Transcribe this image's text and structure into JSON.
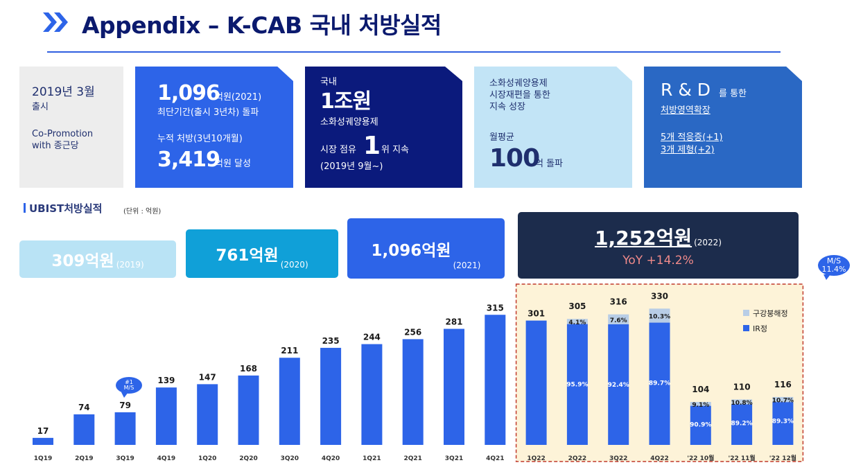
{
  "header": {
    "title": "Appendix – K-CAB 국내 처방실적"
  },
  "boxes": {
    "launch": {
      "line1": "2019년 3월",
      "line2": "출시",
      "line3": "Co-Promotion",
      "line4": "with 종근당"
    },
    "fastest": {
      "value1": "1,096",
      "unit1": "억원(2021)",
      "desc1": "최단기간(출시 3년차) 돌파",
      "desc2": "누적 처방(3년10개월)",
      "value2": "3,419",
      "unit2": "억원 달성"
    },
    "share": {
      "label1": "국내",
      "value": "1조원",
      "label2": "소화성궤양용제",
      "prefix": "시장 점유",
      "rank": "1",
      "suffix": "위 지속",
      "since": "(2019년 9월~)"
    },
    "growth": {
      "line1": "소화성궤양용제",
      "line2": "시장재편을 통한",
      "line3": "지속 성장",
      "label": "월평균",
      "value": "100",
      "unit": "억 돌파"
    },
    "rnd": {
      "title": "R & D",
      "title_suffix": "를 통한",
      "subtitle": "처방영역확장",
      "item1": "5개 적응증(+1)",
      "item2": "3개 제형(+2)"
    }
  },
  "section": {
    "label": "UBIST처방실적",
    "unit": "(단위 : 억원)"
  },
  "yearly": [
    {
      "value": "309억원",
      "year": "(2019)"
    },
    {
      "value": "761억원",
      "year": "(2020)"
    },
    {
      "value": "1,096억원",
      "year": "(2021)"
    },
    {
      "value": "1,252억원",
      "year": "(2022)",
      "yoy": "YoY +14.2%"
    }
  ],
  "bubbles": {
    "first_line1": "#1",
    "first_line2": "M/S",
    "ms_line1": "M/S",
    "ms_line2": "11.4%"
  },
  "chart_data": {
    "type": "bar",
    "categories": [
      "1Q19",
      "2Q19",
      "3Q19",
      "4Q19",
      "1Q20",
      "2Q20",
      "3Q20",
      "4Q20",
      "1Q21",
      "2Q21",
      "3Q21",
      "4Q21",
      "1Q22",
      "2Q22",
      "3Q22",
      "4Q22",
      "'22 10월",
      "'22 11월",
      "'22 12월"
    ],
    "values": [
      17,
      74,
      79,
      139,
      147,
      168,
      211,
      235,
      244,
      256,
      281,
      315,
      301,
      305,
      316,
      330,
      104,
      110,
      116
    ],
    "split": [
      null,
      null,
      null,
      null,
      null,
      null,
      null,
      null,
      null,
      null,
      null,
      null,
      null,
      {
        "ir": "95.9%",
        "odt": "4.1%",
        "ir_frac": 0.959
      },
      {
        "ir": "92.4%",
        "odt": "7.6%",
        "ir_frac": 0.924
      },
      {
        "ir": "89.7%",
        "odt": "10.3%",
        "ir_frac": 0.897
      },
      {
        "ir": "90.9%",
        "odt": "9.1%",
        "ir_frac": 0.909
      },
      {
        "ir": "89.2%",
        "odt": "10.8%",
        "ir_frac": 0.892
      },
      {
        "ir": "89.3%",
        "odt": "10.7%",
        "ir_frac": 0.893
      }
    ],
    "series": [
      {
        "name": "IR정"
      },
      {
        "name": "구강붕해정"
      }
    ],
    "colors": {
      "ir": "#2d64e8",
      "odt": "#b8cde6",
      "highlight_bg": "#fdf3d8",
      "highlight_border": "#c0392b"
    },
    "legend_position": "top-right",
    "grid": false
  }
}
